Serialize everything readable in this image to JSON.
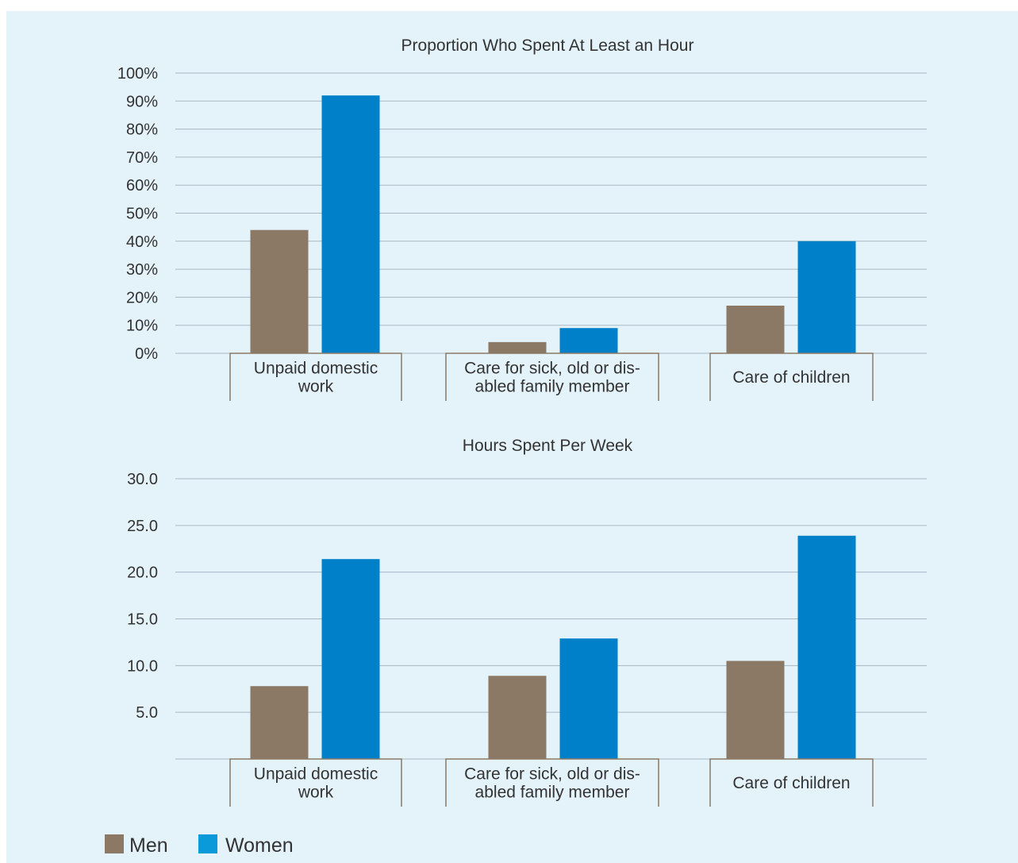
{
  "chart_data": [
    {
      "type": "bar",
      "title": "Proportion Who Spent At Least an Hour",
      "categories": [
        [
          "Unpaid domestic",
          "work"
        ],
        [
          "Care for sick, old or dis-",
          "abled family member"
        ],
        [
          "Care of children"
        ]
      ],
      "series": [
        {
          "name": "Men",
          "values": [
            44,
            4,
            17
          ],
          "color": "#8b7966"
        },
        {
          "name": "Women",
          "values": [
            92,
            9,
            40
          ],
          "color": "#0080c8"
        }
      ],
      "ylim": [
        0,
        100
      ],
      "yticks": [
        0,
        10,
        20,
        30,
        40,
        50,
        60,
        70,
        80,
        90,
        100
      ],
      "ytick_labels": [
        "0%",
        "10%",
        "20%",
        "30%",
        "40%",
        "50%",
        "60%",
        "70%",
        "80%",
        "90%",
        "100%"
      ],
      "grid": true
    },
    {
      "type": "bar",
      "title": "Hours Spent Per Week",
      "categories": [
        [
          "Unpaid domestic",
          "work"
        ],
        [
          "Care for sick, old or dis-",
          "abled family member"
        ],
        [
          "Care of children"
        ]
      ],
      "series": [
        {
          "name": "Men",
          "values": [
            7.8,
            8.9,
            10.5
          ],
          "color": "#8b7966"
        },
        {
          "name": "Women",
          "values": [
            21.4,
            12.9,
            23.9
          ],
          "color": "#0080c8"
        }
      ],
      "ylim": [
        0,
        30
      ],
      "yticks": [
        5,
        10,
        15,
        20,
        25,
        30
      ],
      "ytick_labels": [
        "5.0",
        "10.0",
        "15.0",
        "20.0",
        "25.0",
        "30.0"
      ],
      "grid": true
    }
  ],
  "legend": {
    "placement": "bottom-left",
    "items": [
      {
        "label": "Men",
        "color": "#8b7966"
      },
      {
        "label": "Women",
        "color": "#0a9ad9"
      }
    ]
  }
}
